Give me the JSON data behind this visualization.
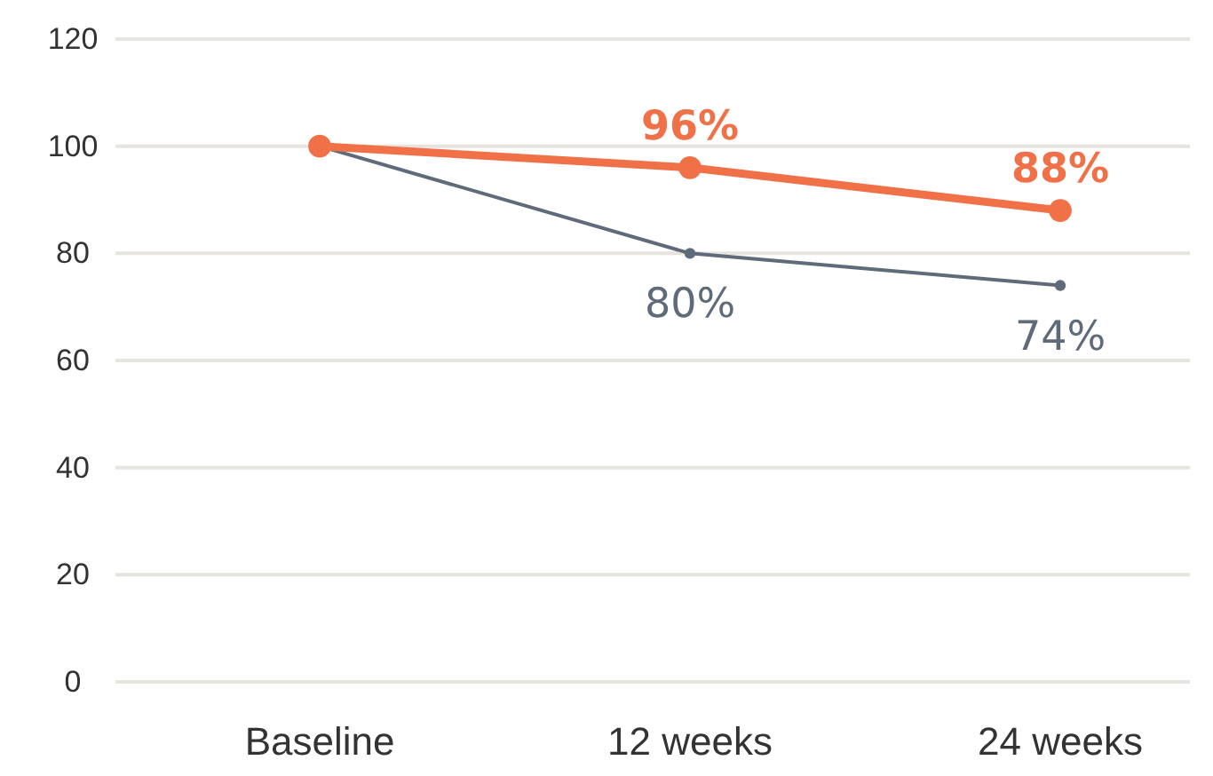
{
  "chart_data": {
    "type": "line",
    "categories": [
      "Baseline",
      "12 weeks",
      "24 weeks"
    ],
    "series": [
      {
        "color": "#5f6b78",
        "values": [
          100,
          80,
          74
        ],
        "value_labels": [
          null,
          "80%",
          "74%"
        ]
      },
      {
        "color": "#f07048",
        "values": [
          100,
          96,
          88
        ],
        "value_labels": [
          null,
          "96%",
          "88%"
        ]
      }
    ],
    "ylim": [
      0,
      120
    ],
    "yticks": [
      0,
      20,
      40,
      60,
      80,
      100,
      120
    ],
    "grid": "y",
    "marker": "circle",
    "line_style": "solid"
  }
}
